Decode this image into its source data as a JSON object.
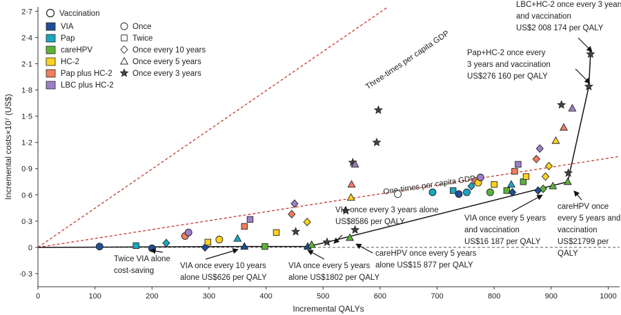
{
  "chart_data": {
    "type": "scatter",
    "xlabel": "Incremental QALYs",
    "ylabel": "Incremental costs×10⁷ (US$)",
    "xlim": [
      0,
      1020
    ],
    "ylim": [
      -0.45,
      2.75
    ],
    "x_ticks": [
      0,
      100,
      200,
      300,
      400,
      500,
      600,
      700,
      800,
      900,
      1000
    ],
    "x_tick_labels": [
      "0",
      "100",
      "200",
      "300",
      "400",
      "500",
      "600",
      "700",
      "800",
      "900",
      "1000"
    ],
    "y_ticks": [
      -0.3,
      0,
      0.3,
      0.6,
      0.9,
      1.2,
      1.5,
      1.8,
      2.1,
      2.4,
      2.7
    ],
    "y_tick_labels": [
      "·0·3",
      "0",
      "0·3",
      "0·6",
      "0·9",
      "1·2",
      "1·5",
      "1·8",
      "2·1",
      "2·4",
      "2·7"
    ],
    "legend": {
      "placement": "top-left",
      "vaccination": "Vaccination",
      "strategies": [
        {
          "label": "VIA",
          "color": "#1f4e96"
        },
        {
          "label": "Pap",
          "color": "#1aa7c0"
        },
        {
          "label": "careHPV",
          "color": "#5db33a"
        },
        {
          "label": "HC-2",
          "color": "#ffd21f"
        },
        {
          "label": "Pap plus HC-2",
          "color": "#f27d5e"
        },
        {
          "label": "LBC plus HC-2",
          "color": "#9c7fc6"
        }
      ],
      "frequencies": [
        {
          "label": "Once",
          "shape": "circle"
        },
        {
          "label": "Twice",
          "shape": "square"
        },
        {
          "label": "Once every 10 years",
          "shape": "diamond"
        },
        {
          "label": "Once every 5 years",
          "shape": "triangle"
        },
        {
          "label": "Once every 3 years",
          "shape": "star"
        }
      ]
    },
    "reference_lines": [
      {
        "name": "Three-times per capita GDP",
        "slope": 0.00448,
        "label": "Three-times per capita GDP"
      },
      {
        "name": "One-times per capita GDP",
        "slope": 0.00102,
        "label": "One-times per capita GDP"
      }
    ],
    "zero_line": 0,
    "points": [
      {
        "x": 108,
        "y": 0.01,
        "strategy": "VIA",
        "frequency": "Once"
      },
      {
        "x": 200,
        "y": -0.01,
        "strategy": "VIA",
        "frequency": "Once"
      },
      {
        "x": 172,
        "y": 0.02,
        "strategy": "Pap",
        "frequency": "Twice"
      },
      {
        "x": 225,
        "y": 0.05,
        "strategy": "Pap",
        "frequency": "Once every 10 years"
      },
      {
        "x": 258,
        "y": 0.13,
        "strategy": "Pap plus HC-2",
        "frequency": "Once"
      },
      {
        "x": 264,
        "y": 0.17,
        "strategy": "LBC plus HC-2",
        "frequency": "Once"
      },
      {
        "x": 293,
        "y": 0,
        "strategy": "VIA",
        "frequency": "Once every 10 years"
      },
      {
        "x": 298,
        "y": 0.06,
        "strategy": "HC-2",
        "frequency": "Twice"
      },
      {
        "x": 318,
        "y": 0.09,
        "strategy": "HC-2",
        "frequency": "Once"
      },
      {
        "x": 350,
        "y": 0.1,
        "strategy": "Pap",
        "frequency": "Once every 5 years"
      },
      {
        "x": 362,
        "y": 0.01,
        "strategy": "VIA",
        "frequency": "Once every 5 years"
      },
      {
        "x": 362,
        "y": 0.24,
        "strategy": "Pap plus HC-2",
        "frequency": "Twice"
      },
      {
        "x": 372,
        "y": 0.32,
        "strategy": "LBC plus HC-2",
        "frequency": "Twice"
      },
      {
        "x": 398,
        "y": 0.01,
        "strategy": "careHPV",
        "frequency": "Twice"
      },
      {
        "x": 418,
        "y": 0.17,
        "strategy": "HC-2",
        "frequency": "Twice"
      },
      {
        "x": 445,
        "y": 0.38,
        "strategy": "Pap plus HC-2",
        "frequency": "Once every 10 years"
      },
      {
        "x": 450,
        "y": 0.5,
        "strategy": "LBC plus HC-2",
        "frequency": "Once every 10 years"
      },
      {
        "x": 452,
        "y": 0.18,
        "strategy": "careHPV",
        "frequency": "Once every 3 years"
      },
      {
        "x": 472,
        "y": 0.29,
        "strategy": "HC-2",
        "frequency": "Once every 10 years"
      },
      {
        "x": 473,
        "y": 0.01,
        "strategy": "VIA",
        "frequency": "Once every 5 years"
      },
      {
        "x": 480,
        "y": 0.03,
        "strategy": "careHPV",
        "frequency": "Once every 5 years"
      },
      {
        "x": 507,
        "y": 0.06,
        "strategy": "VIA",
        "frequency": "Once every 3 years"
      },
      {
        "x": 540,
        "y": 0.42,
        "strategy": "careHPV",
        "frequency": "Once every 3 years"
      },
      {
        "x": 547,
        "y": 0.11,
        "strategy": "careHPV",
        "frequency": "Once every 5 years"
      },
      {
        "x": 549,
        "y": 0.57,
        "strategy": "HC-2",
        "frequency": "Once every 5 years"
      },
      {
        "x": 550,
        "y": 0.72,
        "strategy": "Pap plus HC-2",
        "frequency": "Once every 5 years"
      },
      {
        "x": 552,
        "y": 0.97,
        "strategy": "LBC plus HC-2",
        "frequency": "Once every 3 years"
      },
      {
        "x": 556,
        "y": 0.95,
        "strategy": "LBC plus HC-2",
        "frequency": "Once every 5 years"
      },
      {
        "x": 556,
        "y": 0.2,
        "strategy": "Pap",
        "frequency": "Once every 3 years"
      },
      {
        "x": 594,
        "y": 1.2,
        "strategy": "Pap plus HC-2",
        "frequency": "Once every 3 years"
      },
      {
        "x": 597,
        "y": 1.57,
        "strategy": "LBC plus HC-2",
        "frequency": "Once every 3 years"
      },
      {
        "x": 631,
        "y": 0.61,
        "strategy": "Vaccination",
        "frequency": "Once"
      },
      {
        "x": 692,
        "y": 0.63,
        "strategy": "Pap",
        "frequency": "Once"
      },
      {
        "x": 728,
        "y": 0.65,
        "strategy": "Pap",
        "frequency": "Twice"
      },
      {
        "x": 738,
        "y": 0.61,
        "strategy": "VIA",
        "frequency": "Once"
      },
      {
        "x": 752,
        "y": 0.63,
        "strategy": "Pap",
        "frequency": "Once"
      },
      {
        "x": 760,
        "y": 0.7,
        "strategy": "Pap",
        "frequency": "Once every 10 years"
      },
      {
        "x": 768,
        "y": 0.76,
        "strategy": "Pap plus HC-2",
        "frequency": "Once"
      },
      {
        "x": 772,
        "y": 0.74,
        "strategy": "HC-2",
        "frequency": "Once"
      },
      {
        "x": 776,
        "y": 0.8,
        "strategy": "LBC plus HC-2",
        "frequency": "Once"
      },
      {
        "x": 793,
        "y": 0.63,
        "strategy": "careHPV",
        "frequency": "Once"
      },
      {
        "x": 800,
        "y": 0.72,
        "strategy": "HC-2",
        "frequency": "Twice"
      },
      {
        "x": 822,
        "y": 0.65,
        "strategy": "careHPV",
        "frequency": "Twice"
      },
      {
        "x": 830,
        "y": 0.72,
        "strategy": "Pap",
        "frequency": "Once every 5 years"
      },
      {
        "x": 832,
        "y": 0.63,
        "strategy": "VIA",
        "frequency": "Once every 10 years"
      },
      {
        "x": 836,
        "y": 0.87,
        "strategy": "Pap plus HC-2",
        "frequency": "Twice"
      },
      {
        "x": 842,
        "y": 0.95,
        "strategy": "LBC plus HC-2",
        "frequency": "Twice"
      },
      {
        "x": 851,
        "y": 0.75,
        "strategy": "careHPV",
        "frequency": "Twice"
      },
      {
        "x": 856,
        "y": 0.81,
        "strategy": "HC-2",
        "frequency": "Twice"
      },
      {
        "x": 874,
        "y": 1.01,
        "strategy": "Pap plus HC-2",
        "frequency": "Once every 10 years"
      },
      {
        "x": 877,
        "y": 0.65,
        "strategy": "VIA",
        "frequency": "Once every 10 years"
      },
      {
        "x": 880,
        "y": 1.13,
        "strategy": "LBC plus HC-2",
        "frequency": "Once every 10 years"
      },
      {
        "x": 886,
        "y": 0.67,
        "strategy": "careHPV",
        "frequency": "Once every 10 years"
      },
      {
        "x": 890,
        "y": 0.81,
        "strategy": "HC-2",
        "frequency": "Once every 10 years"
      },
      {
        "x": 896,
        "y": 0.93,
        "strategy": "HC-2",
        "frequency": "Once every 10 years"
      },
      {
        "x": 903,
        "y": 0.7,
        "strategy": "careHPV",
        "frequency": "Once every 5 years"
      },
      {
        "x": 908,
        "y": 1.22,
        "strategy": "HC-2",
        "frequency": "Once every 5 years"
      },
      {
        "x": 918,
        "y": 1.63,
        "strategy": "Pap plus HC-2",
        "frequency": "Once every 3 years"
      },
      {
        "x": 922,
        "y": 1.37,
        "strategy": "Pap plus HC-2",
        "frequency": "Once every 5 years"
      },
      {
        "x": 929,
        "y": 0.75,
        "strategy": "careHPV",
        "frequency": "Once every 5 years"
      },
      {
        "x": 930,
        "y": 0.85,
        "strategy": "careHPV",
        "frequency": "Once every 3 years"
      },
      {
        "x": 937,
        "y": 1.59,
        "strategy": "LBC plus HC-2",
        "frequency": "Once every 5 years"
      },
      {
        "x": 966,
        "y": 1.84,
        "strategy": "Pap plus HC-2",
        "frequency": "Once every 3 years"
      },
      {
        "x": 969,
        "y": 2.21,
        "strategy": "LBC plus HC-2",
        "frequency": "Once every 3 years"
      }
    ],
    "frontier": [
      [
        0,
        0
      ],
      [
        362,
        0.01
      ],
      [
        473,
        0.01
      ],
      [
        507,
        0.06
      ],
      [
        929,
        0.75
      ],
      [
        966,
        1.84
      ],
      [
        969,
        2.21
      ]
    ],
    "annotations": [
      {
        "id": "twice-via",
        "lines": [
          "Twice VIA alone",
          "cost-saving"
        ]
      },
      {
        "id": "via-10y",
        "lines": [
          "VIA once every 10 years",
          "alone US$626 per QALY"
        ]
      },
      {
        "id": "via-5y",
        "lines": [
          "VIA once every 5 years",
          "alone US$1802 per QALY"
        ]
      },
      {
        "id": "via-3y",
        "lines": [
          "VIA  once every 3 years alone",
          "US$8586 per QALY"
        ]
      },
      {
        "id": "carehpv-5y-alone",
        "lines": [
          "careHPV once every 5 years",
          "alone US$15 877 per QALY"
        ]
      },
      {
        "id": "via-5y-vacc",
        "lines": [
          "VIA once every 5 years",
          "and vaccination",
          "US$16 187 per QALY"
        ]
      },
      {
        "id": "carehpv-5y-vacc",
        "lines": [
          "careHPV once",
          "every 5 years and",
          "vaccination",
          "US$21799 per",
          "QALY"
        ]
      },
      {
        "id": "pap-hc2-3y-vacc",
        "lines": [
          "Pap+HC-2 once every",
          "3 years and vaccination",
          "US$276 160 per QALY"
        ]
      },
      {
        "id": "lbc-hc2-3y-vacc",
        "lines": [
          "LBC+HC-2 once every 3 years",
          "and vaccination",
          "US$2 008 174 per QALY"
        ]
      }
    ]
  }
}
